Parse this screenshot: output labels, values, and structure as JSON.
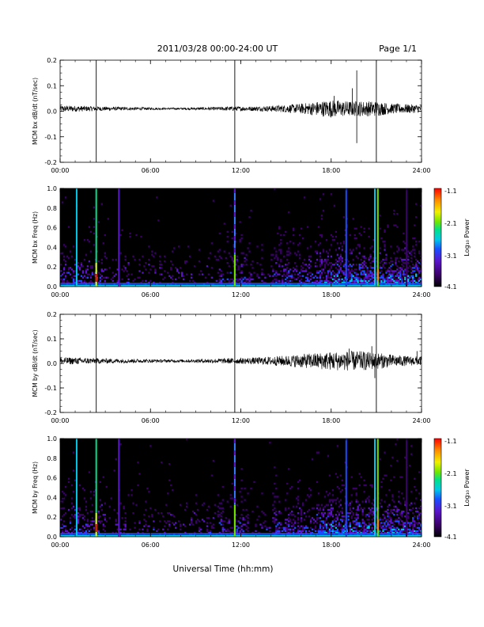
{
  "header": {
    "date_range": "2011/03/28  00:00-24:00 UT",
    "page": "Page 1/1"
  },
  "footer": {
    "xlabel": "Universal Time (hh:mm)"
  },
  "colorbar": {
    "ticks": [
      "-1.1",
      "-2.1",
      "-3.1",
      "-4.1"
    ],
    "label": "Log₁₀ Power",
    "colors": [
      "#000000",
      "#3a0068",
      "#5a14c8",
      "#1a4cff",
      "#00c8e6",
      "#00e08a",
      "#70e600",
      "#f0f000",
      "#ff8c00",
      "#ff0000"
    ]
  },
  "chart_data": [
    {
      "type": "line",
      "ylabel": "MCM bx dB/dt (nT/sec)",
      "xlim": [
        0,
        24
      ],
      "ylim": [
        -0.2,
        0.2
      ],
      "xticks": [
        "00:00",
        "06:00",
        "12:00",
        "18:00",
        "24:00"
      ],
      "yticks": [
        "0.2",
        "0.1",
        "0.0",
        "-0.1",
        "-0.2"
      ],
      "markers_hours": [
        2.4,
        11.6,
        21.0
      ],
      "envelope": {
        "hours": [
          0,
          1,
          2,
          3,
          4,
          5,
          6,
          7,
          8,
          9,
          10,
          11,
          12,
          13,
          14,
          15,
          16,
          17,
          18,
          19,
          20,
          21,
          22,
          23,
          24
        ],
        "amplitude": [
          0.012,
          0.012,
          0.01,
          0.008,
          0.007,
          0.006,
          0.005,
          0.004,
          0.004,
          0.005,
          0.006,
          0.008,
          0.009,
          0.009,
          0.012,
          0.015,
          0.02,
          0.028,
          0.035,
          0.03,
          0.03,
          0.03,
          0.02,
          0.018,
          0.016
        ]
      },
      "spikes": [
        {
          "hour": 19.7,
          "value": 0.16
        },
        {
          "hour": 19.7,
          "value": -0.125
        },
        {
          "hour": 19.4,
          "value": 0.09
        },
        {
          "hour": 18.2,
          "value": 0.06
        }
      ]
    },
    {
      "type": "heatmap",
      "ylabel": "MCM bx Freq (Hz)",
      "xlim": [
        0,
        24
      ],
      "ylim": [
        0,
        1.0
      ],
      "xticks": [
        "00:00",
        "06:00",
        "12:00",
        "18:00",
        "24:00"
      ],
      "yticks": [
        "1.0",
        "0.8",
        "0.6",
        "0.4",
        "0.2",
        "0.0"
      ],
      "zrange": [
        -4.1,
        -1.1
      ],
      "lines": [
        {
          "hour": 1.1,
          "color": "#00c8e6"
        },
        {
          "hour": 2.4,
          "color": "#00e08a"
        },
        {
          "hour": 3.9,
          "color": "#5a14c8"
        },
        {
          "hour": 11.6,
          "color": "#3a7cff"
        },
        {
          "hour": 19.0,
          "color": "#1a4cff"
        },
        {
          "hour": 20.9,
          "color": "#00c8e6"
        },
        {
          "hour": 21.1,
          "color": "#70e600"
        },
        {
          "hour": 23.0,
          "color": "#3a0068"
        }
      ]
    },
    {
      "type": "line",
      "ylabel": "MCM by dB/dt (nT/sec)",
      "xlim": [
        0,
        24
      ],
      "ylim": [
        -0.2,
        0.2
      ],
      "xticks": [
        "00:00",
        "06:00",
        "12:00",
        "18:00",
        "24:00"
      ],
      "yticks": [
        "0.2",
        "0.1",
        "0.0",
        "-0.1",
        "-0.2"
      ],
      "markers_hours": [
        2.4,
        11.6,
        21.0
      ],
      "envelope": {
        "hours": [
          0,
          1,
          2,
          3,
          4,
          5,
          6,
          7,
          8,
          9,
          10,
          11,
          12,
          13,
          14,
          15,
          16,
          17,
          18,
          19,
          20,
          21,
          22,
          23,
          24
        ],
        "amplitude": [
          0.015,
          0.014,
          0.012,
          0.01,
          0.009,
          0.008,
          0.007,
          0.006,
          0.006,
          0.007,
          0.009,
          0.011,
          0.012,
          0.014,
          0.018,
          0.022,
          0.028,
          0.033,
          0.038,
          0.04,
          0.04,
          0.034,
          0.026,
          0.02,
          0.018
        ]
      },
      "spikes": [
        {
          "hour": 20.7,
          "value": 0.07
        },
        {
          "hour": 20.9,
          "value": -0.06
        },
        {
          "hour": 23.7,
          "value": 0.05
        },
        {
          "hour": 19.2,
          "value": 0.06
        }
      ]
    },
    {
      "type": "heatmap",
      "ylabel": "MCM by Freq (Hz)",
      "xlim": [
        0,
        24
      ],
      "ylim": [
        0,
        1.0
      ],
      "xticks": [
        "00:00",
        "06:00",
        "12:00",
        "18:00",
        "24:00"
      ],
      "yticks": [
        "1.0",
        "0.8",
        "0.6",
        "0.4",
        "0.2",
        "0.0"
      ],
      "zrange": [
        -4.1,
        -1.1
      ],
      "lines": [
        {
          "hour": 1.1,
          "color": "#00c8e6"
        },
        {
          "hour": 2.4,
          "color": "#00e08a"
        },
        {
          "hour": 3.9,
          "color": "#5a14c8"
        },
        {
          "hour": 11.6,
          "color": "#3a7cff"
        },
        {
          "hour": 19.0,
          "color": "#1a4cff"
        },
        {
          "hour": 20.9,
          "color": "#00c8e6"
        },
        {
          "hour": 21.1,
          "color": "#70e600"
        },
        {
          "hour": 23.0,
          "color": "#3a0068"
        }
      ]
    }
  ]
}
